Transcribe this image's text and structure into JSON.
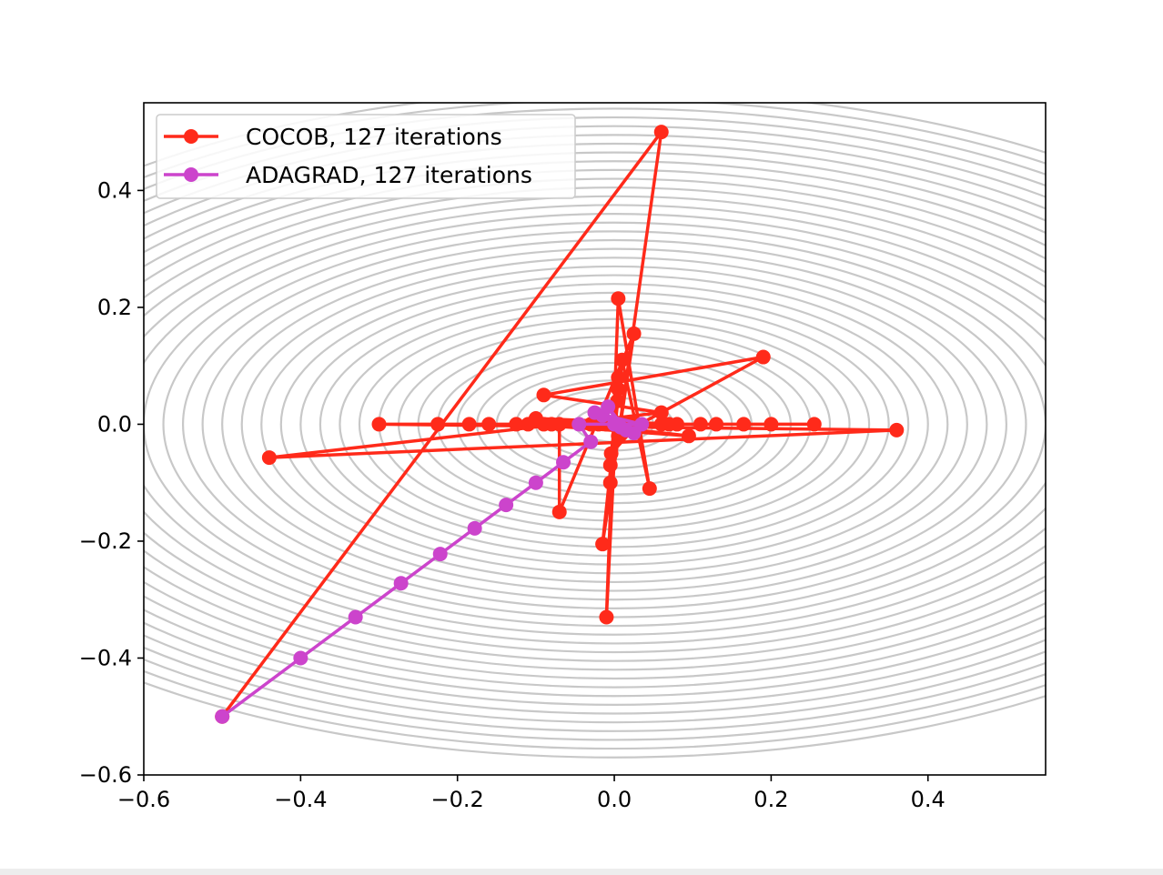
{
  "chart_data": {
    "type": "line",
    "title": "",
    "xlabel": "",
    "ylabel": "",
    "xlim": [
      -0.6,
      0.55
    ],
    "ylim": [
      -0.6,
      0.55
    ],
    "xticks": [
      -0.6,
      -0.4,
      -0.2,
      0.0,
      0.2,
      0.4
    ],
    "yticks": [
      -0.6,
      -0.4,
      -0.2,
      0.0,
      0.2,
      0.4
    ],
    "xtick_labels": [
      "−0.6",
      "−0.4",
      "−0.2",
      "0.0",
      "0.2",
      "0.4"
    ],
    "ytick_labels": [
      "−0.6",
      "−0.4",
      "−0.2",
      "0.0",
      "0.2",
      "0.4"
    ],
    "legend_position": "top-left",
    "background": {
      "type": "contour",
      "color": "#c8c8c8",
      "function": "elliptical level sets centered at origin (x-axis elongated)",
      "x_semi_axes": [
        0.05,
        0.075,
        0.1,
        0.125,
        0.15,
        0.175,
        0.2,
        0.225,
        0.25,
        0.275,
        0.3,
        0.325,
        0.35,
        0.375,
        0.4,
        0.425,
        0.45,
        0.475,
        0.5,
        0.525,
        0.55,
        0.575,
        0.6,
        0.625,
        0.65,
        0.675,
        0.7,
        0.725,
        0.75,
        0.775,
        0.8,
        0.825,
        0.85,
        0.875,
        0.9,
        0.925,
        0.95
      ],
      "axis_ratio_y_over_x": 0.6
    },
    "series": [
      {
        "name": "COCOB, 127 iterations",
        "color": "#ff2a1a",
        "points": [
          [
            -0.5,
            -0.5
          ],
          [
            0.06,
            0.5
          ],
          [
            0.005,
            -0.02
          ],
          [
            0.19,
            0.115
          ],
          [
            -0.09,
            0.05
          ],
          [
            0.06,
            0.02
          ],
          [
            -0.44,
            -0.057
          ],
          [
            0.36,
            -0.01
          ],
          [
            -0.3,
            0.0
          ],
          [
            0.255,
            0.0
          ],
          [
            -0.225,
            0.0
          ],
          [
            0.2,
            0.0
          ],
          [
            -0.185,
            0.0
          ],
          [
            0.165,
            0.0
          ],
          [
            -0.16,
            0.0
          ],
          [
            0.13,
            0.0
          ],
          [
            -0.125,
            0.0
          ],
          [
            0.11,
            0.0
          ],
          [
            -0.11,
            0.0
          ],
          [
            0.095,
            -0.02
          ],
          [
            -0.1,
            0.01
          ],
          [
            0.08,
            0.0
          ],
          [
            -0.09,
            0.0
          ],
          [
            0.07,
            0.0
          ],
          [
            -0.08,
            0.0
          ],
          [
            0.06,
            0.0
          ],
          [
            -0.07,
            0.0
          ],
          [
            -0.07,
            -0.15
          ],
          [
            0.025,
            0.155
          ],
          [
            -0.015,
            -0.205
          ],
          [
            0.01,
            0.11
          ],
          [
            0.045,
            -0.11
          ],
          [
            0.005,
            0.215
          ],
          [
            -0.01,
            -0.33
          ],
          [
            0.005,
            0.08
          ],
          [
            -0.005,
            -0.1
          ],
          [
            0.005,
            0.06
          ],
          [
            -0.005,
            -0.07
          ],
          [
            0.004,
            0.04
          ],
          [
            -0.004,
            -0.05
          ],
          [
            0.03,
            0.0
          ],
          [
            -0.03,
            0.0
          ],
          [
            0.02,
            0.0
          ],
          [
            -0.02,
            0.0
          ],
          [
            0.01,
            0.0
          ],
          [
            -0.01,
            0.0
          ],
          [
            0.005,
            0.0
          ],
          [
            0.0,
            0.0
          ]
        ]
      },
      {
        "name": "ADAGRAD, 127 iterations",
        "color": "#cc44cc",
        "points": [
          [
            -0.5,
            -0.5
          ],
          [
            -0.4,
            -0.4
          ],
          [
            -0.33,
            -0.33
          ],
          [
            -0.272,
            -0.272
          ],
          [
            -0.222,
            -0.222
          ],
          [
            -0.178,
            -0.178
          ],
          [
            -0.138,
            -0.138
          ],
          [
            -0.1,
            -0.1
          ],
          [
            -0.065,
            -0.065
          ],
          [
            -0.03,
            -0.03
          ],
          [
            -0.045,
            0.0
          ],
          [
            0.035,
            0.0
          ],
          [
            -0.025,
            0.02
          ],
          [
            0.025,
            -0.015
          ],
          [
            -0.015,
            0.015
          ],
          [
            0.015,
            -0.01
          ],
          [
            -0.008,
            0.03
          ],
          [
            0.008,
            -0.005
          ],
          [
            0.0,
            0.0
          ]
        ]
      }
    ]
  }
}
